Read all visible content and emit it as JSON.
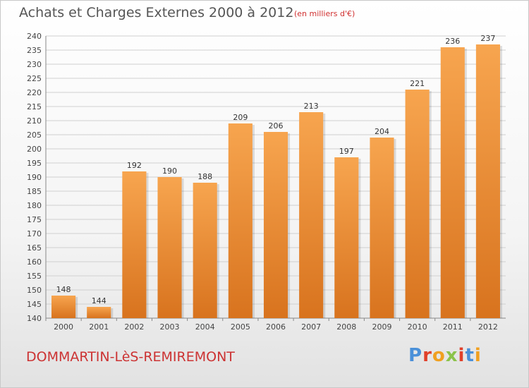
{
  "title": "Achats et Charges Externes 2000 à 2012",
  "subtitle": "(en milliers d'€)",
  "place": "DOMMARTIN-LèS-REMIREMONT",
  "brand": {
    "text": "Proxiti",
    "letter_colors": [
      "#4a90d9",
      "#e0402a",
      "#f0a020",
      "#8bc34a",
      "#e0402a",
      "#4a90d9",
      "#f0a020"
    ]
  },
  "colors": {
    "bar_top": "#f7a54f",
    "bar_bottom": "#d8731e",
    "gridline": "#d0d0d0",
    "title": "#555555",
    "place": "#cc3333"
  },
  "chart_data": {
    "type": "bar",
    "categories": [
      "2000",
      "2001",
      "2002",
      "2003",
      "2004",
      "2005",
      "2006",
      "2007",
      "2008",
      "2009",
      "2010",
      "2011",
      "2012"
    ],
    "values": [
      148,
      144,
      192,
      190,
      188,
      209,
      206,
      213,
      197,
      204,
      221,
      236,
      237
    ],
    "ylim": [
      140,
      240
    ],
    "ytick_step": 5,
    "grid": true,
    "xlabel": "",
    "ylabel": ""
  }
}
